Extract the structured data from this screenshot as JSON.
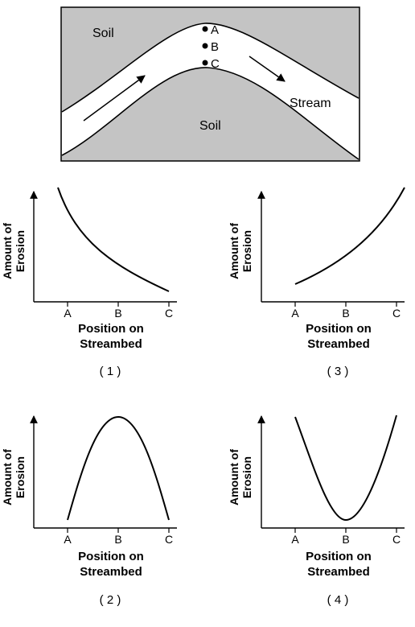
{
  "diagram": {
    "soil_top_label": "Soil",
    "soil_bottom_label": "Soil",
    "stream_label": "Stream",
    "points": [
      "A",
      "B",
      "C"
    ],
    "colors": {
      "soil": "#c4c4c4",
      "stream": "#ffffff",
      "ink": "#000000"
    }
  },
  "graphs": [
    {
      "number": "( 1 )",
      "ylabel_line1": "Amount of",
      "ylabel_line2": "Erosion",
      "xlabel_line1": "Position on",
      "xlabel_line2": "Streambed",
      "ticks": [
        "A",
        "B",
        "C"
      ],
      "curve": "decreasing"
    },
    {
      "number": "( 3 )",
      "ylabel_line1": "Amount of",
      "ylabel_line2": "Erosion",
      "xlabel_line1": "Position on",
      "xlabel_line2": "Streambed",
      "ticks": [
        "A",
        "B",
        "C"
      ],
      "curve": "increasing"
    },
    {
      "number": "( 2 )",
      "ylabel_line1": "Amount of",
      "ylabel_line2": "Erosion",
      "xlabel_line1": "Position on",
      "xlabel_line2": "Streambed",
      "ticks": [
        "A",
        "B",
        "C"
      ],
      "curve": "peak-at-B"
    },
    {
      "number": "( 4 )",
      "ylabel_line1": "Amount of",
      "ylabel_line2": "Erosion",
      "xlabel_line1": "Position on",
      "xlabel_line2": "Streambed",
      "ticks": [
        "A",
        "B",
        "C"
      ],
      "curve": "trough-at-B"
    }
  ]
}
